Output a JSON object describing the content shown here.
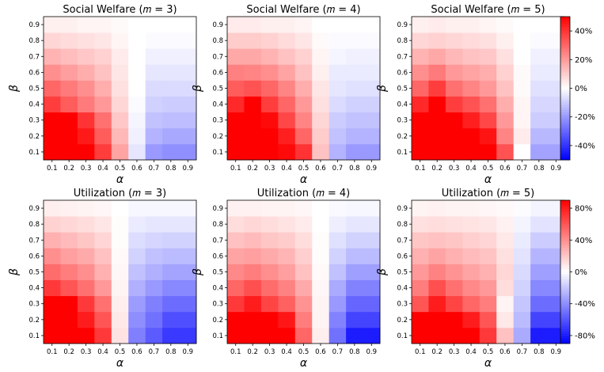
{
  "chart_data": {
    "type": "heatmap",
    "x_label": "α",
    "y_label": "β",
    "x_ticks": [
      "0.1",
      "0.2",
      "0.3",
      "0.4",
      "0.5",
      "0.6",
      "0.7",
      "0.8",
      "0.9"
    ],
    "y_ticks": [
      "0.1",
      "0.2",
      "0.3",
      "0.4",
      "0.5",
      "0.6",
      "0.7",
      "0.8",
      "0.9"
    ],
    "rows": [
      {
        "colorbar": {
          "range": [
            -50,
            50
          ],
          "ticks": [
            {
              "value": 40,
              "label": "40%"
            },
            {
              "value": 20,
              "label": "20%"
            },
            {
              "value": 0,
              "label": "0%"
            },
            {
              "value": -20,
              "label": "-20%"
            },
            {
              "value": -40,
              "label": "-40%"
            }
          ]
        },
        "panels": [
          {
            "title": "Social Welfare (𝑚 = 3)",
            "values_note": "rows beta 0.1 to 0.9, columns alpha 0.1 to 0.9, percent",
            "values": [
              [
                50,
                50,
                50,
                38,
                18,
                -5,
                -20,
                -22,
                -22
              ],
              [
                50,
                50,
                45,
                32,
                14,
                -3,
                -15,
                -17,
                -17
              ],
              [
                50,
                50,
                40,
                28,
                11,
                -2,
                -12,
                -13,
                -13
              ],
              [
                38,
                32,
                26,
                20,
                8,
                -1,
                -9,
                -10,
                -10
              ],
              [
                30,
                26,
                22,
                16,
                6,
                0,
                -7,
                -7,
                -7
              ],
              [
                22,
                19,
                16,
                12,
                5,
                0,
                -5,
                -5,
                -5
              ],
              [
                15,
                13,
                11,
                9,
                4,
                0,
                -3,
                -3,
                -3
              ],
              [
                8,
                7,
                6,
                5,
                2,
                0,
                -1,
                -1,
                -1
              ],
              [
                3,
                3,
                2,
                2,
                1,
                0,
                0,
                0,
                0
              ]
            ]
          },
          {
            "title": "Social Welfare (𝑚 = 4)",
            "values": [
              [
                50,
                50,
                50,
                48,
                40,
                12,
                -15,
                -20,
                -20
              ],
              [
                50,
                50,
                50,
                44,
                30,
                10,
                -12,
                -15,
                -15
              ],
              [
                50,
                50,
                48,
                36,
                24,
                8,
                -10,
                -12,
                -12
              ],
              [
                42,
                50,
                38,
                30,
                20,
                6,
                -7,
                -9,
                -9
              ],
              [
                32,
                34,
                30,
                24,
                16,
                5,
                -5,
                -6,
                -6
              ],
              [
                25,
                24,
                22,
                18,
                12,
                3,
                -4,
                -4,
                -4
              ],
              [
                17,
                17,
                15,
                12,
                9,
                2,
                -2,
                -3,
                -3
              ],
              [
                10,
                10,
                9,
                7,
                5,
                1,
                -1,
                -1,
                -1
              ],
              [
                4,
                4,
                3,
                3,
                2,
                0,
                0,
                0,
                0
              ]
            ]
          },
          {
            "title": "Social Welfare (𝑚 = 5)",
            "values": [
              [
                50,
                50,
                50,
                50,
                50,
                34,
                0,
                -18,
                -18
              ],
              [
                50,
                50,
                50,
                50,
                46,
                24,
                4,
                -14,
                -14
              ],
              [
                50,
                50,
                50,
                44,
                36,
                20,
                2,
                -10,
                -10
              ],
              [
                42,
                50,
                38,
                34,
                28,
                16,
                2,
                -8,
                -8
              ],
              [
                30,
                38,
                28,
                24,
                20,
                12,
                1,
                -6,
                -6
              ],
              [
                22,
                26,
                20,
                18,
                16,
                9,
                1,
                -4,
                -4
              ],
              [
                15,
                17,
                14,
                12,
                11,
                6,
                0,
                -3,
                -3
              ],
              [
                8,
                9,
                8,
                7,
                6,
                3,
                0,
                -1,
                -1
              ],
              [
                3,
                4,
                3,
                3,
                2,
                1,
                0,
                0,
                0
              ]
            ]
          }
        ]
      },
      {
        "colorbar": {
          "range": [
            -90,
            90
          ],
          "ticks": [
            {
              "value": 80,
              "label": "80%"
            },
            {
              "value": 40,
              "label": "40%"
            },
            {
              "value": 0,
              "label": "0%"
            },
            {
              "value": -40,
              "label": "-40%"
            },
            {
              "value": -80,
              "label": "-80%"
            }
          ]
        },
        "panels": [
          {
            "title": "Utilization (𝑚 = 3)",
            "values": [
              [
                90,
                90,
                90,
                70,
                10,
                -45,
                -58,
                -70,
                -70
              ],
              [
                90,
                90,
                80,
                60,
                8,
                -40,
                -50,
                -62,
                -62
              ],
              [
                90,
                90,
                70,
                50,
                6,
                -35,
                -45,
                -52,
                -52
              ],
              [
                70,
                60,
                50,
                36,
                4,
                -28,
                -36,
                -42,
                -42
              ],
              [
                52,
                46,
                40,
                28,
                3,
                -22,
                -28,
                -32,
                -32
              ],
              [
                40,
                34,
                30,
                22,
                2,
                -16,
                -22,
                -24,
                -24
              ],
              [
                28,
                24,
                20,
                15,
                1,
                -12,
                -15,
                -16,
                -16
              ],
              [
                16,
                14,
                12,
                9,
                1,
                -7,
                -9,
                -9,
                -9
              ],
              [
                6,
                5,
                4,
                3,
                0,
                -3,
                -3,
                -3,
                -3
              ]
            ]
          },
          {
            "title": "Utilization (𝑚 = 4)",
            "values": [
              [
                90,
                90,
                90,
                90,
                54,
                6,
                -50,
                -80,
                -80
              ],
              [
                90,
                90,
                90,
                82,
                46,
                4,
                -44,
                -66,
                -66
              ],
              [
                70,
                80,
                66,
                56,
                38,
                4,
                -36,
                -54,
                -54
              ],
              [
                54,
                62,
                52,
                44,
                30,
                3,
                -30,
                -44,
                -44
              ],
              [
                42,
                46,
                40,
                34,
                22,
                2,
                -22,
                -34,
                -34
              ],
              [
                32,
                34,
                30,
                26,
                17,
                1,
                -16,
                -24,
                -24
              ],
              [
                22,
                24,
                20,
                18,
                12,
                1,
                -11,
                -16,
                -16
              ],
              [
                12,
                14,
                12,
                10,
                7,
                0,
                -6,
                -9,
                -9
              ],
              [
                5,
                5,
                4,
                4,
                3,
                0,
                -2,
                -3,
                -3
              ]
            ]
          },
          {
            "title": "Utilization (𝑚 = 5)",
            "values": [
              [
                90,
                90,
                90,
                90,
                70,
                22,
                -30,
                -80,
                -80
              ],
              [
                90,
                90,
                90,
                80,
                60,
                8,
                -24,
                -66,
                -66
              ],
              [
                60,
                80,
                66,
                54,
                46,
                4,
                -20,
                -52,
                -52
              ],
              [
                46,
                62,
                50,
                42,
                36,
                12,
                -16,
                -42,
                -42
              ],
              [
                36,
                44,
                38,
                32,
                28,
                14,
                -13,
                -34,
                -34
              ],
              [
                28,
                32,
                28,
                24,
                21,
                11,
                -10,
                -26,
                -26
              ],
              [
                20,
                22,
                20,
                17,
                15,
                8,
                -7,
                -18,
                -18
              ],
              [
                11,
                12,
                11,
                10,
                9,
                5,
                -4,
                -10,
                -10
              ],
              [
                4,
                5,
                4,
                4,
                3,
                2,
                -1,
                -4,
                -4
              ]
            ]
          }
        ]
      }
    ]
  }
}
